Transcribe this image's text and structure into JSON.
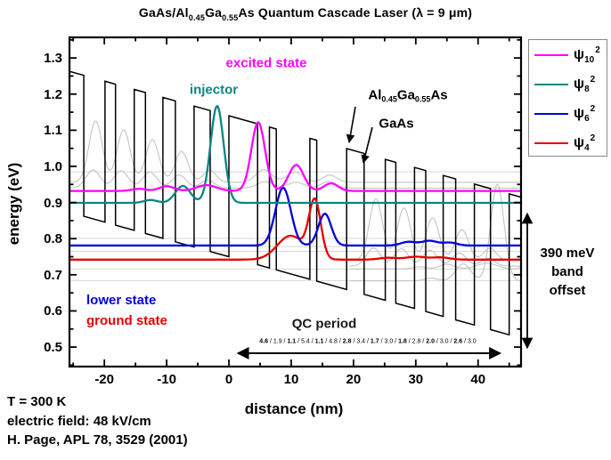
{
  "title": {
    "parts": [
      {
        "t": "GaAs/Al"
      },
      {
        "t": "0.45",
        "sub": true
      },
      {
        "t": "Ga"
      },
      {
        "t": "0.55",
        "sub": true
      },
      {
        "t": "As Quantum Cascade Laser ("
      },
      {
        "t": "λ = 9 μm"
      },
      {
        "t": ")"
      }
    ]
  },
  "axes": {
    "xlabel": "distance (nm)",
    "ylabel": "energy (eV)",
    "x_tick_labels": [
      "-20",
      "-10",
      "0",
      "10",
      "20",
      "30",
      "40"
    ],
    "y_tick_labels": [
      "1.3",
      "1.2",
      "1.1",
      "1.0",
      "0.9",
      "0.8",
      "0.7",
      "0.6",
      "0.5"
    ]
  },
  "legend": {
    "psi": "ψ",
    "sup": "2",
    "entries": [
      {
        "sub": "10",
        "color": "#ff00ff"
      },
      {
        "sub": "8",
        "color": "#0a8585"
      },
      {
        "sub": "6",
        "color": "#0000dd"
      },
      {
        "sub": "4",
        "color": "#e60000"
      }
    ]
  },
  "annotations": {
    "excited_state": {
      "text": "excited state",
      "color": "#ff00ff"
    },
    "injector": {
      "text": "injector",
      "color": "#0a8585"
    },
    "barrier_material": {
      "parts": [
        {
          "t": "Al"
        },
        {
          "t": "0.45",
          "sub": true
        },
        {
          "t": "Ga"
        },
        {
          "t": "0.55",
          "sub": true
        },
        {
          "t": "As"
        }
      ]
    },
    "well_material": {
      "text": "GaAs"
    },
    "lower_state": {
      "text": "lower state",
      "color": "#0000dd"
    },
    "ground_state": {
      "text": "ground state",
      "color": "#e60000"
    },
    "qc_period": {
      "text": "QC period",
      "color": "#1a1a1a"
    },
    "band_offset": {
      "lines": [
        "390 meV",
        "band",
        "offset"
      ]
    }
  },
  "footer": {
    "line1": "T = 300 K",
    "line2": "electric field: 48 kV/cm",
    "line3": "H. Page, APL 78, 3529 (2001)"
  },
  "chart_data": {
    "type": "line",
    "title": "GaAs/Al0.45Ga0.55As Quantum Cascade Laser (lambda = 9 um)",
    "xlabel": "distance (nm)",
    "ylabel": "energy (eV)",
    "xlim": [
      -25.6,
      46.9
    ],
    "ylim": [
      0.446,
      1.357
    ],
    "x_major_ticks": [
      -20,
      -10,
      0,
      10,
      20,
      30,
      40
    ],
    "x_minor_ticks": [
      -25,
      -15,
      -5,
      5,
      15,
      25,
      35,
      45
    ],
    "y_major_ticks": [
      1.3,
      1.2,
      1.1,
      1.0,
      0.9,
      0.8,
      0.7,
      0.6,
      0.5
    ],
    "y_minor_ticks": [
      1.35,
      1.25,
      1.15,
      1.05,
      0.95,
      0.85,
      0.75,
      0.65,
      0.55,
      0.45
    ],
    "band_profile": {
      "layers_nm": [
        4.6,
        1.9,
        1.1,
        5.4,
        1.1,
        4.8,
        2.8,
        3.4,
        1.7,
        3.0,
        1.8,
        2.8,
        2.0,
        3.0,
        2.6,
        3.0
      ],
      "first_layer": "barrier",
      "period_nm": 45,
      "electric_field_kV_per_cm": 48,
      "field_eV_per_nm": 0.0048,
      "barrier_top_eV_at_x0": 1.14,
      "well_bottom_eV_at_x0": 0.75,
      "band_offset_meV": 390,
      "period_energy_drop_eV": 0.216
    },
    "states": [
      {
        "name": "psi10",
        "role": "excited state",
        "color": "#ff00ff",
        "gray": false,
        "replicate_next_period": true,
        "energy_eV": 0.932,
        "peaks": [
          [
            -14.5,
            0.006,
            1.6
          ],
          [
            -10.0,
            0.013,
            1.7
          ],
          [
            -3.6,
            0.016,
            2.3
          ],
          [
            4.7,
            0.19,
            1.55
          ],
          [
            10.8,
            0.072,
            1.7
          ],
          [
            16.4,
            0.021,
            1.6
          ]
        ]
      },
      {
        "name": "psi8",
        "role": "injector",
        "color": "#0a8585",
        "gray": false,
        "replicate_next_period": true,
        "energy_eV": 0.899,
        "peaks": [
          [
            -12.6,
            0.008,
            1.5
          ],
          [
            -7.4,
            0.047,
            1.7
          ],
          [
            -1.9,
            0.268,
            1.5
          ]
        ]
      },
      {
        "name": "psi6",
        "role": "lower state",
        "color": "#0000dd",
        "gray": false,
        "replicate_next_period": false,
        "energy_eV": 0.781,
        "peaks": [
          [
            8.7,
            0.16,
            1.75
          ],
          [
            15.4,
            0.088,
            1.45
          ],
          [
            28.8,
            0.01,
            1.7
          ],
          [
            32.2,
            0.013,
            1.8
          ],
          [
            35.5,
            0.008,
            1.6
          ]
        ]
      },
      {
        "name": "psi4",
        "role": "ground state",
        "color": "#e60000",
        "gray": false,
        "replicate_next_period": false,
        "energy_eV": 0.742,
        "peaks": [
          [
            9.9,
            0.066,
            3.0
          ],
          [
            13.8,
            0.157,
            1.35
          ],
          [
            25.5,
            0.005,
            2.0
          ],
          [
            30.0,
            0.008,
            2.2
          ],
          [
            34.0,
            0.006,
            2.0
          ]
        ]
      },
      {
        "name": "background-upper",
        "role": "other subband",
        "color": "#c4c4c4",
        "gray": true,
        "replicate_next_period": true,
        "energy_eV": 0.956,
        "peaks": [
          [
            -21.4,
            0.17,
            1.5
          ],
          [
            -16.9,
            0.145,
            1.5
          ],
          [
            -12.3,
            0.118,
            1.5
          ],
          [
            -7.6,
            0.085,
            1.5
          ],
          [
            -3.1,
            0.034,
            1.4
          ],
          [
            5.6,
            0.035,
            1.8
          ],
          [
            10.6,
            0.028,
            1.8
          ],
          [
            16.2,
            0.02,
            1.6
          ]
        ]
      },
      {
        "name": "background-lower",
        "role": "other subband",
        "color": "#c4c4c4",
        "gray": true,
        "replicate_next_period": true,
        "energy_eV": 0.94,
        "peaks": [
          [
            -21.8,
            0.05,
            1.6
          ],
          [
            -17.3,
            0.048,
            1.6
          ],
          [
            -12.7,
            0.044,
            1.6
          ],
          [
            -8.0,
            0.036,
            1.6
          ],
          [
            -3.4,
            0.022,
            1.5
          ],
          [
            5.8,
            0.018,
            1.8
          ],
          [
            10.8,
            0.016,
            1.8
          ],
          [
            16.0,
            0.018,
            1.6
          ]
        ]
      }
    ],
    "extra_levels_eV": [
      0.985,
      0.801,
      0.778,
      0.765,
      0.716,
      0.684
    ],
    "qc_period_span_nm": [
      0,
      45
    ],
    "legend_position": "outside top-right",
    "grid": false
  }
}
